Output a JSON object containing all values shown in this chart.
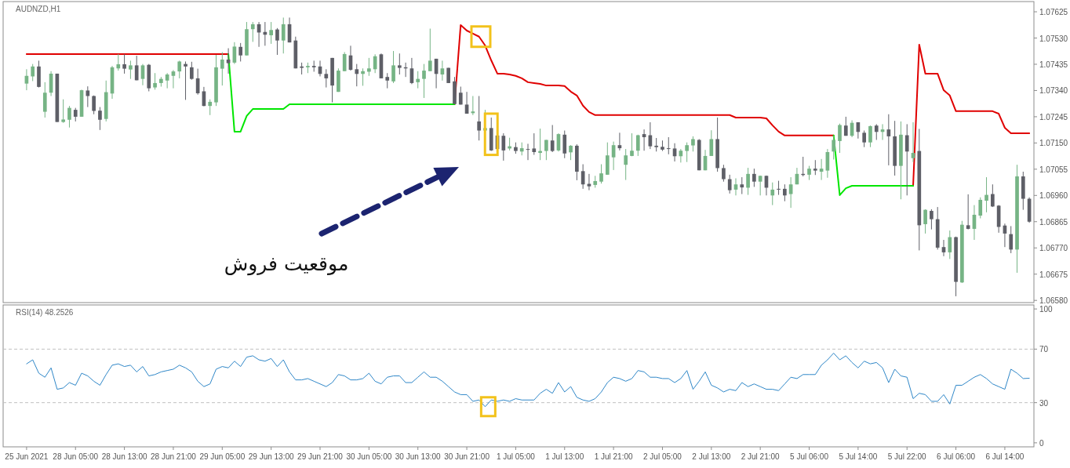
{
  "chart_data": [
    {
      "type": "candlestick",
      "title": "AUDNZD,H1",
      "tick_labels": "y",
      "categories": [
        null,
        null,
        null,
        null,
        null,
        null,
        null,
        null,
        null,
        null,
        null,
        null,
        null,
        null,
        null,
        null,
        null,
        null,
        null,
        null,
        null,
        null,
        null,
        null,
        null,
        null,
        null,
        null,
        null,
        null,
        null,
        null,
        null,
        null,
        null,
        null,
        null,
        null,
        null,
        null,
        null,
        null,
        null,
        null,
        null,
        null,
        null,
        null,
        null,
        null,
        null,
        null,
        null,
        null,
        null,
        null,
        null,
        null,
        null,
        null,
        null,
        null,
        null,
        null,
        null,
        null,
        null,
        null,
        null,
        null,
        null,
        null,
        null,
        null,
        null,
        null,
        null,
        null,
        null,
        null,
        null,
        null,
        null,
        null,
        null,
        null,
        null,
        null,
        null,
        null,
        null,
        null,
        null,
        null,
        null,
        null,
        null,
        null,
        null,
        null,
        null,
        null,
        null,
        null,
        null,
        null,
        null,
        null,
        null,
        null,
        null,
        null,
        null,
        null,
        null,
        null,
        null,
        null,
        null,
        null,
        null,
        null,
        null,
        null,
        null,
        null,
        null,
        null,
        null,
        null,
        null,
        null,
        null,
        null,
        null,
        null,
        null,
        null,
        null,
        null,
        null,
        null,
        null,
        null,
        null,
        null,
        null,
        null,
        null,
        null,
        null,
        null,
        null,
        null,
        null,
        null,
        null,
        null,
        null,
        null,
        null,
        null,
        null,
        null,
        null
      ],
      "ylim": [
        1.06572,
        1.07662
      ],
      "yticks": [
        {
          "value": 1.0658,
          "label": "1.06580"
        },
        1.06675,
        {
          "value": 1.0677,
          "label": "1.06770"
        },
        1.06865,
        {
          "value": 1.0696,
          "label": "1.06960"
        },
        1.07055,
        {
          "value": 1.0715,
          "label": "1.07150"
        },
        1.07245,
        {
          "value": 1.0734,
          "label": "1.07340"
        },
        1.07435,
        {
          "value": 1.0753,
          "label": "1.07530"
        },
        1.07625
      ],
      "ohlc": [
        [
          1.07365,
          1.07417,
          1.07341,
          1.07393
        ],
        [
          1.07391,
          1.07436,
          1.07374,
          1.07427
        ],
        [
          1.07427,
          1.07448,
          1.07351,
          1.07353
        ],
        [
          1.07263,
          1.0737,
          1.07242,
          1.07332
        ],
        [
          1.07332,
          1.0741,
          1.0732,
          1.07401
        ],
        [
          1.07401,
          1.07401,
          1.07226,
          1.07226
        ],
        [
          1.07226,
          1.07308,
          1.07223,
          1.07235
        ],
        [
          1.07234,
          1.07284,
          1.07206,
          1.07277
        ],
        [
          1.0727,
          1.07277,
          1.07228,
          1.07245
        ],
        [
          1.07245,
          1.07343,
          1.07245,
          1.07341
        ],
        [
          1.0734,
          1.07355,
          1.0728,
          1.0732
        ],
        [
          1.0732,
          1.07322,
          1.07254,
          1.07266
        ],
        [
          1.07267,
          1.0728,
          1.07197,
          1.07234
        ],
        [
          1.07237,
          1.07376,
          1.07228,
          1.07334
        ],
        [
          1.07329,
          1.07429,
          1.0731,
          1.07424
        ],
        [
          1.0742,
          1.07472,
          1.07412,
          1.07435
        ],
        [
          1.07435,
          1.07472,
          1.07401,
          1.07419
        ],
        [
          1.07416,
          1.07448,
          1.07382,
          1.07431
        ],
        [
          1.07431,
          1.07466,
          1.07377,
          1.07377
        ],
        [
          1.07382,
          1.07436,
          1.07359,
          1.07431
        ],
        [
          1.07433,
          1.07436,
          1.07337,
          1.07348
        ],
        [
          1.07351,
          1.07403,
          1.07343,
          1.07367
        ],
        [
          1.07367,
          1.07389,
          1.07354,
          1.07382
        ],
        [
          1.07376,
          1.07403,
          1.07348,
          1.07398
        ],
        [
          1.07393,
          1.07414,
          1.07348,
          1.07409
        ],
        [
          1.07409,
          1.07448,
          1.07384,
          1.07445
        ],
        [
          1.07436,
          1.07445,
          1.07306,
          1.07427
        ],
        [
          1.07424,
          1.07444,
          1.07379,
          1.07382
        ],
        [
          1.07384,
          1.07419,
          1.07325,
          1.0733
        ],
        [
          1.07337,
          1.07353,
          1.07283,
          1.07284
        ],
        [
          1.07284,
          1.07308,
          1.07251,
          1.07299
        ],
        [
          1.07297,
          1.07469,
          1.07284,
          1.07424
        ],
        [
          1.07419,
          1.07479,
          1.07358,
          1.07452
        ],
        [
          1.07452,
          1.07493,
          1.07401,
          1.07439
        ],
        [
          1.07441,
          1.07515,
          1.07436,
          1.07499
        ],
        [
          1.07498,
          1.07512,
          1.07445,
          1.07467
        ],
        [
          1.07467,
          1.07588,
          1.07467,
          1.07562
        ],
        [
          1.07562,
          1.07588,
          1.07516,
          1.0758
        ],
        [
          1.0758,
          1.07588,
          1.07498,
          1.0755
        ],
        [
          1.07552,
          1.07588,
          1.07502,
          1.07542
        ],
        [
          1.0754,
          1.07588,
          1.07509,
          1.07559
        ],
        [
          1.07561,
          1.07566,
          1.07469,
          1.07521
        ],
        [
          1.07521,
          1.07604,
          1.07474,
          1.0758
        ],
        [
          1.0758,
          1.07604,
          1.07514,
          1.07514
        ],
        [
          1.07521,
          1.07535,
          1.0742,
          1.0742
        ],
        [
          1.07427,
          1.07441,
          1.07398,
          1.07422
        ],
        [
          1.07424,
          1.07441,
          1.07403,
          1.07429
        ],
        [
          1.07429,
          1.07448,
          1.07408,
          1.07424
        ],
        [
          1.07427,
          1.07448,
          1.07391,
          1.074
        ],
        [
          1.074,
          1.07417,
          1.07351,
          1.07384
        ],
        [
          1.07458,
          1.07458,
          1.07297,
          1.07358
        ],
        [
          1.07335,
          1.0742,
          1.07335,
          1.07412
        ],
        [
          1.0741,
          1.07479,
          1.0741,
          1.07472
        ],
        [
          1.07467,
          1.07502,
          1.07412,
          1.07415
        ],
        [
          1.07417,
          1.07436,
          1.07355,
          1.074
        ],
        [
          1.074,
          1.0742,
          1.07357,
          1.0741
        ],
        [
          1.07408,
          1.07458,
          1.07393,
          1.0742
        ],
        [
          1.07417,
          1.07471,
          1.07403,
          1.07464
        ],
        [
          1.07471,
          1.07474,
          1.07384,
          1.07384
        ],
        [
          1.07389,
          1.07403,
          1.07348,
          1.07376
        ],
        [
          1.07373,
          1.07483,
          1.07367,
          1.07431
        ],
        [
          1.07431,
          1.07474,
          1.07398,
          1.07422
        ],
        [
          1.07424,
          1.07441,
          1.07389,
          1.0742
        ],
        [
          1.0742,
          1.07458,
          1.07363,
          1.07367
        ],
        [
          1.0737,
          1.0741,
          1.07348,
          1.07382
        ],
        [
          1.07382,
          1.07436,
          1.07313,
          1.07412
        ],
        [
          1.0741,
          1.07564,
          1.0741,
          1.07448
        ],
        [
          1.07455,
          1.07455,
          1.07348,
          1.074
        ],
        [
          1.07398,
          1.07448,
          1.07376,
          1.0742
        ],
        [
          1.07422,
          1.07422,
          1.07367,
          1.07367
        ],
        [
          1.07373,
          1.07389,
          1.07291,
          1.07291
        ],
        [
          1.07332,
          1.07354,
          1.07289,
          1.07289
        ],
        [
          1.07289,
          1.07335,
          1.07256,
          1.07256
        ],
        [
          1.07258,
          1.0732,
          1.07251,
          1.07264
        ],
        [
          1.07228,
          1.0732,
          1.07159,
          1.07195
        ],
        [
          1.07195,
          1.0727,
          1.07195,
          1.07204
        ],
        [
          1.07204,
          1.07242,
          1.07121,
          1.07123
        ],
        [
          1.07177,
          1.07177,
          1.07128,
          1.07128
        ],
        [
          1.07176,
          1.07185,
          1.07086,
          1.07123
        ],
        [
          1.0713,
          1.07169,
          1.07123,
          1.07138
        ],
        [
          1.07135,
          1.07152,
          1.07111,
          1.07121
        ],
        [
          1.07119,
          1.07152,
          1.07105,
          1.07131
        ],
        [
          1.07128,
          1.07147,
          1.07088,
          1.07126
        ],
        [
          1.0713,
          1.07185,
          1.07107,
          1.07117
        ],
        [
          1.07114,
          1.07202,
          1.07088,
          1.07121
        ],
        [
          1.07121,
          1.07161,
          1.07088,
          1.07161
        ],
        [
          1.07159,
          1.07215,
          1.07117,
          1.07121
        ],
        [
          1.07123,
          1.07185,
          1.07119,
          1.07182
        ],
        [
          1.0718,
          1.07195,
          1.07095,
          1.07112
        ],
        [
          1.07116,
          1.07142,
          1.07088,
          1.0714
        ],
        [
          1.0714,
          1.07145,
          1.07015,
          1.07046
        ],
        [
          1.07048,
          1.07073,
          1.06984,
          1.07
        ],
        [
          1.07002,
          1.07038,
          1.06979,
          1.06993
        ],
        [
          1.06998,
          1.07031,
          1.06988,
          1.07012
        ],
        [
          1.0701,
          1.07073,
          1.07003,
          1.0704
        ],
        [
          1.07035,
          1.07152,
          1.07035,
          1.07105
        ],
        [
          1.07098,
          1.07155,
          1.07052,
          1.07142
        ],
        [
          1.07142,
          1.07187,
          1.07123,
          1.07131
        ],
        [
          1.07071,
          1.07128,
          1.07016,
          1.07105
        ],
        [
          1.07103,
          1.07185,
          1.07102,
          1.07122
        ],
        [
          1.07122,
          1.0718,
          1.07103,
          1.07178
        ],
        [
          1.07182,
          1.07199,
          1.07122,
          1.07171
        ],
        [
          1.07178,
          1.07225,
          1.07128,
          1.07138
        ],
        [
          1.0714,
          1.07168,
          1.07119,
          1.07135
        ],
        [
          1.07136,
          1.07159,
          1.07121,
          1.07126
        ],
        [
          1.07131,
          1.07171,
          1.07109,
          1.07129
        ],
        [
          1.0713,
          1.07149,
          1.07083,
          1.07102
        ],
        [
          1.07102,
          1.07128,
          1.07079,
          1.07122
        ],
        [
          1.07121,
          1.07152,
          1.07081,
          1.07142
        ],
        [
          1.07141,
          1.07174,
          1.07119,
          1.07164
        ],
        [
          1.07161,
          1.07164,
          1.07051,
          1.07051
        ],
        [
          1.07051,
          1.07125,
          1.07051,
          1.07103
        ],
        [
          1.07103,
          1.07196,
          1.07103,
          1.07164
        ],
        [
          1.07164,
          1.07242,
          1.07046,
          1.07059
        ],
        [
          1.07059,
          1.07071,
          1.0701,
          1.07019
        ],
        [
          1.07019,
          1.07035,
          1.06967,
          1.06979
        ],
        [
          1.06981,
          1.07022,
          1.0696,
          1.07
        ],
        [
          1.07,
          1.07026,
          1.06965,
          1.06989
        ],
        [
          1.06988,
          1.0706,
          1.06962,
          1.07038
        ],
        [
          1.07038,
          1.07057,
          1.06991,
          1.0701
        ],
        [
          1.0701,
          1.07032,
          1.0696,
          1.07031
        ],
        [
          1.07031,
          1.07032,
          1.0696,
          1.06988
        ],
        [
          1.0696,
          1.07007,
          1.06925,
          1.06981
        ],
        [
          1.06984,
          1.07013,
          1.06962,
          1.06981
        ],
        [
          1.06984,
          1.07,
          1.06939,
          1.0696
        ],
        [
          1.06965,
          1.07026,
          1.06915,
          1.07
        ],
        [
          1.07,
          1.0706,
          1.07,
          1.07038
        ],
        [
          1.07038,
          1.071,
          1.07029,
          1.07034
        ],
        [
          1.07035,
          1.07067,
          1.07016,
          1.07057
        ],
        [
          1.07057,
          1.07088,
          1.07034,
          1.0705
        ],
        [
          1.07046,
          1.07092,
          1.07016,
          1.07057
        ],
        [
          1.0705,
          1.07128,
          1.07024,
          1.07117
        ],
        [
          1.07119,
          1.07176,
          1.0709,
          1.07161
        ],
        [
          1.07157,
          1.0722,
          1.07114,
          1.07215
        ],
        [
          1.07213,
          1.07245,
          1.07176,
          1.07176
        ],
        [
          1.07176,
          1.07232,
          1.07171,
          1.07223
        ],
        [
          1.07225,
          1.07225,
          1.07166,
          1.0719
        ],
        [
          1.07187,
          1.07195,
          1.07135,
          1.07152
        ],
        [
          1.07152,
          1.07213,
          1.07135,
          1.07211
        ],
        [
          1.07213,
          1.07218,
          1.07161,
          1.0719
        ],
        [
          1.0719,
          1.07218,
          1.07161,
          1.07199
        ],
        [
          1.07199,
          1.07254,
          1.07069,
          1.07174
        ],
        [
          1.07174,
          1.0723,
          1.07032,
          1.07067
        ],
        [
          1.07067,
          1.07228,
          1.06946,
          1.0718
        ],
        [
          1.07178,
          1.07218,
          1.0696,
          1.07119
        ],
        [
          1.07095,
          1.07225,
          1.07081,
          1.07114
        ],
        [
          1.07121,
          1.07201,
          1.06761,
          1.06852
        ],
        [
          1.06856,
          1.0691,
          1.06822,
          1.06908
        ],
        [
          1.06904,
          1.0691,
          1.06837,
          1.06874
        ],
        [
          1.06874,
          1.06918,
          1.06764,
          1.06771
        ],
        [
          1.06773,
          1.06799,
          1.0674,
          1.06754
        ],
        [
          1.06754,
          1.06833,
          1.0673,
          1.06809
        ],
        [
          1.06809,
          1.06811,
          1.06595,
          1.06647
        ],
        [
          1.06645,
          1.06868,
          1.06643,
          1.06854
        ],
        [
          1.06852,
          1.06964,
          1.06837,
          1.06839
        ],
        [
          1.06839,
          1.06925,
          1.06799,
          1.0689
        ],
        [
          1.06887,
          1.06953,
          1.06877,
          1.06944
        ],
        [
          1.06941,
          1.07026,
          1.06899,
          1.06962
        ],
        [
          1.06965,
          1.07,
          1.06918,
          1.0692
        ],
        [
          1.06923,
          1.06925,
          1.06825,
          1.06846
        ],
        [
          1.06851,
          1.06858,
          1.06773,
          1.06822
        ],
        [
          1.0682,
          1.06849,
          1.06751,
          1.06764
        ],
        [
          1.06764,
          1.07071,
          1.0668,
          1.07029
        ],
        [
          1.07029,
          1.07046,
          1.06908,
          1.06948
        ],
        [
          1.06948,
          1.06953,
          1.06861,
          1.06865
        ]
      ],
      "colors": [
        "#76b485",
        "#76b485",
        "#5e5f67",
        "#76b485",
        "#76b485",
        "#5e5f67",
        "#76b485",
        "#76b485",
        "#5e5f67",
        "#76b485",
        "#5e5f67",
        "#5e5f67",
        "#5e5f67",
        "#76b485",
        "#76b485",
        "#76b485",
        "#5e5f67",
        "#76b485",
        "#5e5f67",
        "#76b485",
        "#5e5f67",
        "#76b485",
        "#76b485",
        "#76b485",
        "#76b485",
        "#76b485",
        "#5e5f67",
        "#5e5f67",
        "#5e5f67",
        "#5e5f67",
        "#76b485",
        "#76b485",
        "#76b485",
        "#5e5f67",
        "#76b485",
        "#5e5f67",
        "#76b485",
        "#76b485",
        "#5e5f67",
        "#5e5f67",
        "#76b485",
        "#5e5f67",
        "#76b485",
        "#5e5f67",
        "#5e5f67",
        "#5e5f67",
        "#76b485",
        "#5e5f67",
        "#5e5f67",
        "#5e5f67",
        "#5e5f67",
        "#76b485",
        "#76b485",
        "#5e5f67",
        "#5e5f67",
        "#76b485",
        "#76b485",
        "#76b485",
        "#5e5f67",
        "#5e5f67",
        "#76b485",
        "#5e5f67",
        "#5e5f67",
        "#5e5f67",
        "#76b485",
        "#76b485",
        "#76b485",
        "#5e5f67",
        "#76b485",
        "#5e5f67",
        "#5e5f67",
        "#5e5f67",
        "#5e5f67",
        "#76b485",
        "#5e5f67",
        "#76b485",
        "#5e5f67",
        "#5e5f67",
        "#5e5f67",
        "#76b485",
        "#5e5f67",
        "#76b485",
        "#5e5f67",
        "#5e5f67",
        "#76b485",
        "#76b485",
        "#5e5f67",
        "#76b485",
        "#5e5f67",
        "#76b485",
        "#5e5f67",
        "#5e5f67",
        "#5e5f67",
        "#76b485",
        "#76b485",
        "#76b485",
        "#76b485",
        "#5e5f67",
        "#76b485",
        "#76b485",
        "#76b485",
        "#5e5f67",
        "#5e5f67",
        "#5e5f67",
        "#5e5f67",
        "#5e5f67",
        "#5e5f67",
        "#76b485",
        "#76b485",
        "#76b485",
        "#5e5f67",
        "#76b485",
        "#76b485",
        "#5e5f67",
        "#5e5f67",
        "#5e5f67",
        "#76b485",
        "#5e5f67",
        "#76b485",
        "#5e5f67",
        "#76b485",
        "#5e5f67",
        "#76b485",
        "#5e5f67",
        "#5e5f67",
        "#76b485",
        "#76b485",
        "#5e5f67",
        "#76b485",
        "#5e5f67",
        "#76b485",
        "#76b485",
        "#76b485",
        "#76b485",
        "#5e5f67",
        "#76b485",
        "#5e5f67",
        "#5e5f67",
        "#76b485",
        "#5e5f67",
        "#76b485",
        "#5e5f67",
        "#5e5f67",
        "#76b485",
        "#5e5f67",
        "#76b485",
        "#5e5f67",
        "#76b485",
        "#5e5f67",
        "#5e5f67",
        "#5e5f67",
        "#76b485",
        "#5e5f67",
        "#76b485",
        "#5e5f67",
        "#76b485",
        "#76b485",
        "#76b485",
        "#5e5f67",
        "#5e5f67",
        "#5e5f67",
        "#5e5f67",
        "#76b485",
        "#5e5f67",
        "#5e5f67"
      ],
      "series": [
        {
          "type": "line",
          "color": "#e00000",
          "values": [
            1.07472,
            1.07472,
            1.07472,
            1.07472,
            1.07472,
            1.07472,
            1.07472,
            1.07472,
            1.07472,
            1.07472,
            1.07472,
            1.07472,
            1.07472,
            1.07472,
            1.07472,
            1.07472,
            1.07472,
            1.07472,
            1.07472,
            1.07472,
            1.07472,
            1.07472,
            1.07472,
            1.07472,
            1.07472,
            1.07472,
            1.07472,
            1.07472,
            1.07472,
            1.07472,
            1.07472,
            1.07472,
            1.07472,
            1.07472,
            null,
            null,
            null,
            null,
            null,
            null,
            null,
            null,
            null,
            null,
            null,
            null,
            null,
            null,
            null,
            null,
            null,
            null,
            null,
            null,
            null,
            null,
            null,
            null,
            null,
            null,
            null,
            null,
            null,
            null,
            null,
            null,
            null,
            null,
            null,
            null,
            1.0729,
            1.07577,
            1.07557,
            1.07546,
            1.07535,
            1.07503,
            1.07449,
            1.07401,
            1.07401,
            1.07398,
            1.07393,
            1.07384,
            1.0737,
            1.07367,
            1.07364,
            1.07358,
            1.07358,
            1.07358,
            1.07356,
            1.07336,
            1.07322,
            1.07285,
            1.07262,
            1.07251,
            1.07251,
            1.07251,
            1.07251,
            1.07251,
            1.07251,
            1.07251,
            1.07251,
            1.07251,
            1.07251,
            1.07251,
            1.07251,
            1.07251,
            1.07251,
            1.07251,
            1.07251,
            1.07251,
            1.07251,
            1.07251,
            1.07251,
            1.07251,
            1.07251,
            1.07251,
            1.07242,
            1.07242,
            1.07242,
            1.07242,
            1.07242,
            1.07239,
            1.07214,
            1.07191,
            1.07177,
            1.07177,
            1.07177,
            1.07177,
            1.07177,
            1.07177,
            1.07177,
            1.07177,
            1.07177,
            null,
            null,
            null,
            null,
            null,
            null,
            null,
            null,
            null,
            null,
            null,
            null,
            1.06995,
            1.07506,
            1.07401,
            1.07401,
            1.07401,
            1.07341,
            1.07322,
            1.07265,
            1.07265,
            1.07265,
            1.07265,
            1.07265,
            1.07265,
            1.07265,
            1.07256,
            1.07205,
            1.07185,
            1.07185,
            1.07185,
            1.07185
          ]
        },
        {
          "type": "line",
          "color": "#00e600",
          "values": [
            null,
            null,
            null,
            null,
            null,
            null,
            null,
            null,
            null,
            null,
            null,
            null,
            null,
            null,
            null,
            null,
            null,
            null,
            null,
            null,
            null,
            null,
            null,
            null,
            null,
            null,
            null,
            null,
            null,
            null,
            null,
            null,
            null,
            1.07472,
            1.07191,
            1.07191,
            1.07248,
            1.07273,
            1.07273,
            1.07273,
            1.07273,
            1.07273,
            1.07273,
            1.0729,
            1.0729,
            1.0729,
            1.0729,
            1.0729,
            1.0729,
            1.0729,
            1.0729,
            1.0729,
            1.0729,
            1.0729,
            1.0729,
            1.0729,
            1.0729,
            1.0729,
            1.0729,
            1.0729,
            1.0729,
            1.0729,
            1.0729,
            1.0729,
            1.0729,
            1.0729,
            1.0729,
            1.0729,
            1.0729,
            1.0729,
            1.0729,
            null,
            null,
            null,
            null,
            null,
            null,
            null,
            null,
            null,
            null,
            null,
            null,
            null,
            null,
            null,
            null,
            null,
            null,
            null,
            null,
            null,
            null,
            null,
            null,
            null,
            null,
            null,
            null,
            null,
            null,
            null,
            null,
            null,
            null,
            null,
            null,
            null,
            null,
            null,
            null,
            null,
            null,
            null,
            null,
            null,
            null,
            null,
            null,
            null,
            null,
            null,
            null,
            null,
            null,
            null,
            null,
            null,
            null,
            null,
            null,
            null,
            1.07177,
            1.06961,
            1.06986,
            1.06995,
            1.06995,
            1.06995,
            1.06995,
            1.06995,
            1.06995,
            1.06995,
            1.06995,
            1.06995,
            1.06995,
            1.06995,
            null,
            null,
            null,
            null,
            null,
            null,
            null,
            null,
            null,
            null,
            null,
            null,
            null,
            null,
            null,
            null,
            null,
            null,
            null
          ]
        }
      ],
      "annotations": [
        "موقعیت فروش"
      ]
    },
    {
      "type": "line",
      "title": "RSI(14) 48.2526",
      "categories": [
        "25 Jun 2021",
        null,
        null,
        null,
        null,
        null,
        null,
        null,
        "28 Jun 05:00",
        null,
        null,
        null,
        null,
        null,
        null,
        null,
        "28 Jun 13:00",
        null,
        null,
        null,
        null,
        null,
        null,
        null,
        "28 Jun 21:00",
        null,
        null,
        null,
        null,
        null,
        null,
        null,
        "29 Jun 05:00",
        null,
        null,
        null,
        null,
        null,
        null,
        null,
        "29 Jun 13:00",
        null,
        null,
        null,
        null,
        null,
        null,
        null,
        "29 Jun 21:00",
        null,
        null,
        null,
        null,
        null,
        null,
        null,
        "30 Jun 05:00",
        null,
        null,
        null,
        null,
        null,
        null,
        null,
        "30 Jun 13:00",
        null,
        null,
        null,
        null,
        null,
        null,
        null,
        "30 Jun 21:00",
        null,
        null,
        null,
        null,
        null,
        null,
        null,
        "1 Jul 05:00",
        null,
        null,
        null,
        null,
        null,
        null,
        null,
        "1 Jul 13:00",
        null,
        null,
        null,
        null,
        null,
        null,
        null,
        "1 Jul 21:00",
        null,
        null,
        null,
        null,
        null,
        null,
        null,
        "2 Jul 05:00",
        null,
        null,
        null,
        null,
        null,
        null,
        null,
        "2 Jul 13:00",
        null,
        null,
        null,
        null,
        null,
        null,
        null,
        "2 Jul 21:00",
        null,
        null,
        null,
        null,
        null,
        null,
        null,
        "5 Jul 06:00",
        null,
        null,
        null,
        null,
        null,
        null,
        null,
        "5 Jul 14:00",
        null,
        null,
        null,
        null,
        null,
        null,
        null,
        "5 Jul 22:00",
        null,
        null,
        null,
        null,
        null,
        null,
        null,
        "6 Jul 06:00",
        null,
        null,
        null,
        null,
        null,
        null,
        null,
        "6 Jul 14:00",
        null,
        null,
        null,
        null
      ],
      "ylim": [
        -3,
        103
      ],
      "yticks": [
        0,
        30,
        70,
        100
      ],
      "ref_lines": [
        {
          "axis": "y",
          "value": 30,
          "color": "#c0c0c0",
          "line_style": "dashed"
        },
        {
          "axis": "y",
          "value": 70,
          "color": "#c0c0c0",
          "line_style": "dashed"
        }
      ],
      "series": [
        {
          "color": "#2f87c8",
          "values": [
            59,
            62,
            52,
            49,
            56,
            40,
            41,
            45,
            43,
            52,
            50,
            46,
            43,
            51,
            58,
            59,
            57,
            58,
            53,
            57,
            50,
            51,
            53,
            54,
            55,
            58,
            56,
            53,
            46,
            42,
            44,
            55,
            57,
            56,
            61,
            57,
            64,
            65,
            62,
            61,
            63,
            57,
            62,
            53,
            47,
            47,
            48,
            46,
            44,
            42,
            45,
            51,
            50,
            47,
            47,
            48,
            52,
            46,
            44,
            49,
            50,
            50,
            45,
            45,
            49,
            53,
            49,
            49,
            46,
            42,
            38,
            36,
            36,
            31,
            32,
            27,
            32,
            31,
            32,
            31,
            33,
            32,
            32,
            32,
            37,
            40,
            37,
            45,
            38,
            42,
            34,
            32,
            31,
            33,
            38,
            45,
            49,
            48,
            46,
            48,
            54,
            53,
            49,
            49,
            48,
            48,
            45,
            48,
            54,
            40,
            46,
            53,
            43,
            41,
            38,
            40,
            39,
            45,
            42,
            44,
            42,
            40,
            40,
            39,
            44,
            49,
            48,
            51,
            51,
            51,
            58,
            62,
            67,
            62,
            65,
            60,
            56,
            61,
            59,
            60,
            56,
            45,
            55,
            50,
            49,
            33,
            37,
            36,
            31,
            31,
            36,
            29,
            43,
            43,
            46,
            49,
            51,
            48,
            44,
            42,
            40,
            55,
            52,
            48,
            48.2526
          ]
        }
      ]
    }
  ]
}
